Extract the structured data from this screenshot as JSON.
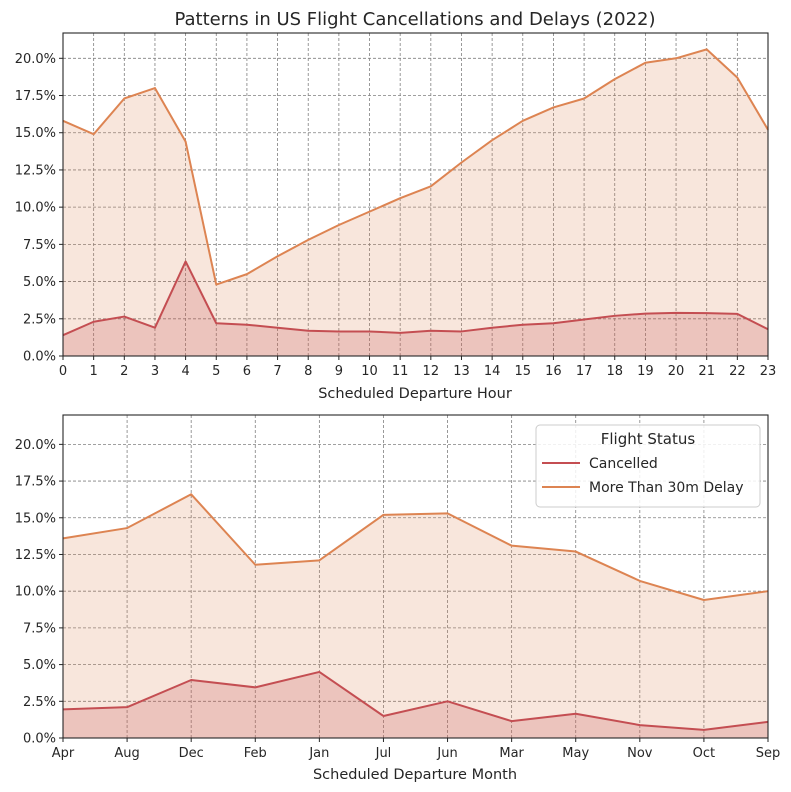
{
  "chart_data": [
    {
      "type": "area",
      "title": "Patterns in US Flight Cancellations and Delays (2022)",
      "xlabel": "Scheduled Departure Hour",
      "ylabel": "",
      "categories": [
        "0",
        "1",
        "2",
        "3",
        "4",
        "5",
        "6",
        "7",
        "8",
        "9",
        "10",
        "11",
        "12",
        "13",
        "14",
        "15",
        "16",
        "17",
        "18",
        "19",
        "20",
        "21",
        "22",
        "23"
      ],
      "ylim": [
        0,
        0.217
      ],
      "yticks": [
        "0.0%",
        "2.5%",
        "5.0%",
        "7.5%",
        "10.0%",
        "12.5%",
        "15.0%",
        "17.5%",
        "20.0%"
      ],
      "grid": true,
      "series": [
        {
          "name": "Cancelled",
          "color": "#c44e52",
          "values": [
            0.014,
            0.023,
            0.0265,
            0.019,
            0.0635,
            0.022,
            0.021,
            0.019,
            0.017,
            0.0165,
            0.0165,
            0.0155,
            0.017,
            0.0165,
            0.019,
            0.021,
            0.022,
            0.0245,
            0.027,
            0.0285,
            0.029,
            0.0288,
            0.0283,
            0.018
          ]
        },
        {
          "name": "More Than 30m Delay",
          "color": "#dd8452",
          "values": [
            0.158,
            0.149,
            0.173,
            0.18,
            0.144,
            0.048,
            0.055,
            0.067,
            0.078,
            0.088,
            0.097,
            0.106,
            0.114,
            0.13,
            0.145,
            0.158,
            0.167,
            0.173,
            0.186,
            0.197,
            0.2,
            0.206,
            0.187,
            0.152
          ]
        }
      ]
    },
    {
      "type": "area",
      "title": "",
      "xlabel": "Scheduled Departure Month",
      "ylabel": "",
      "categories": [
        "Apr",
        "Aug",
        "Dec",
        "Feb",
        "Jan",
        "Jul",
        "Jun",
        "Mar",
        "May",
        "Nov",
        "Oct",
        "Sep"
      ],
      "ylim": [
        0,
        0.22
      ],
      "yticks": [
        "0.0%",
        "2.5%",
        "5.0%",
        "7.5%",
        "10.0%",
        "12.5%",
        "15.0%",
        "17.5%",
        "20.0%"
      ],
      "grid": true,
      "legend": {
        "title": "Flight Status",
        "position": "top-right",
        "entries": [
          "Cancelled",
          "More Than 30m Delay"
        ]
      },
      "series": [
        {
          "name": "Cancelled",
          "color": "#c44e52",
          "values": [
            0.0195,
            0.021,
            0.0395,
            0.0345,
            0.045,
            0.015,
            0.025,
            0.0115,
            0.0165,
            0.0088,
            0.0055,
            0.011
          ]
        },
        {
          "name": "More Than 30m Delay",
          "color": "#dd8452",
          "values": [
            0.136,
            0.143,
            0.166,
            0.118,
            0.121,
            0.152,
            0.153,
            0.131,
            0.127,
            0.107,
            0.094,
            0.1
          ]
        }
      ]
    }
  ]
}
